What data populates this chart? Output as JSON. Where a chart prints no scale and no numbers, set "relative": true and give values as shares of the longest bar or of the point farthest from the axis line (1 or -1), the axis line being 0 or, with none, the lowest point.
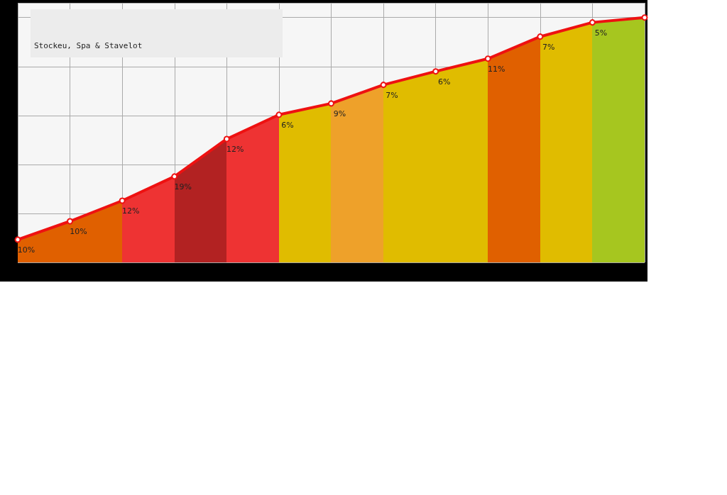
{
  "chart_data": {
    "type": "area",
    "title": "Stockeu, Spa & Stavelot",
    "relative": true,
    "grid": true,
    "marker": "circle",
    "categories": [
      null,
      null,
      null,
      null,
      null,
      null,
      null,
      null,
      null,
      null,
      null,
      null,
      null
    ],
    "series": [
      {
        "color": "#ee1111",
        "values": [
          0.093,
          0.168,
          0.252,
          0.351,
          0.504,
          0.603,
          0.649,
          0.725,
          0.78,
          0.832,
          0.922,
          0.98,
          1
        ],
        "colors": [
          "#e06000",
          "#e06000",
          "#ee3333",
          "#b22222",
          "#ee3333",
          "#e0bc00",
          "#eea12a",
          "#e0bc00",
          "#e0bc00",
          "#e06000",
          "#e0bc00",
          "#a6c61f",
          "#a6c61f"
        ]
      }
    ],
    "annotations": [
      {
        "text": "10%",
        "y": 0.093
      },
      {
        "text": "10%",
        "y": 0.168
      },
      {
        "text": "12%",
        "y": 0.252
      },
      {
        "text": "19%",
        "y": 0.351
      },
      {
        "text": "12%",
        "y": 0.504
      },
      {
        "text": "6%",
        "y": 0.603
      },
      {
        "text": "9%",
        "y": 0.649
      },
      {
        "text": "7%",
        "y": 0.725
      },
      {
        "text": "6%",
        "y": 0.78
      },
      {
        "text": "11%",
        "y": 0.832
      },
      {
        "text": "7%",
        "y": 0.922
      },
      {
        "text": "5%",
        "y": 0.98
      }
    ]
  }
}
